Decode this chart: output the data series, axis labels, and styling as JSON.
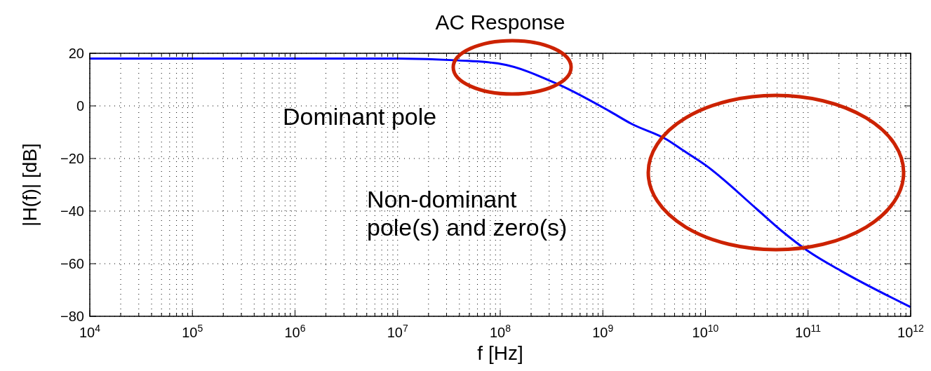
{
  "chart_data": {
    "type": "line",
    "title": "AC Response",
    "xlabel": "f [Hz]",
    "ylabel": "|H(f)| [dB]",
    "log": "x",
    "grid": true,
    "marker": "none",
    "line_style": "solid",
    "xlim": [
      10000,
      1000000000000
    ],
    "ylim": [
      -80,
      20
    ],
    "xticks": [
      {
        "value": 10000,
        "label": "10$^{4}$"
      },
      {
        "value": 100000,
        "label": "10$^{5}$"
      },
      {
        "value": 1000000,
        "label": "10$^{6}$"
      },
      {
        "value": 10000000,
        "label": "10$^{7}$"
      },
      {
        "value": 100000000,
        "label": "10$^{8}$"
      },
      {
        "value": 1000000000,
        "label": "10$^{9}$"
      },
      {
        "value": 10000000000,
        "label": "10$^{10}$"
      },
      {
        "value": 100000000000,
        "label": "10$^{11}$"
      },
      {
        "value": 1000000000000,
        "label": "10$^{12}$"
      }
    ],
    "yticks": [
      {
        "value": -80,
        "label": "−80"
      },
      {
        "value": -60,
        "label": "−60"
      },
      {
        "value": -40,
        "label": "−40"
      },
      {
        "value": -20,
        "label": "−20"
      },
      0,
      20
    ],
    "annotations": [
      "Dominant pole",
      "Non-dominant\npole(s) and zero(s)"
    ],
    "series": [
      {
        "color": "#0000ff",
        "x": [
          10000,
          100000,
          1000000,
          10000000,
          39000000,
          100000000,
          363000000,
          1150000000,
          1900000000,
          4200000000,
          6000000000,
          10000000000,
          31600000000,
          54000000000,
          100000000000,
          209000000000,
          1000000000000
        ],
        "values": [
          18,
          18,
          18,
          18,
          17.3,
          16,
          8.3,
          -1.9,
          -6.8,
          -12.8,
          -16.8,
          -22.5,
          -39.2,
          -47.2,
          -55.2,
          -62.7,
          -76.5
        ]
      }
    ]
  }
}
